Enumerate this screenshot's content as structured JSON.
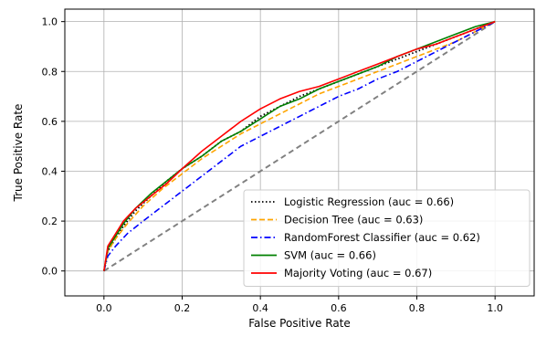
{
  "chart_data": {
    "type": "line",
    "title": "",
    "xlabel": "False Positive Rate",
    "ylabel": "True Positive Rate",
    "xlim": [
      -0.1,
      1.1
    ],
    "ylim": [
      -0.1,
      1.05
    ],
    "xticks": [
      "0.0",
      "0.2",
      "0.4",
      "0.6",
      "0.8",
      "1.0"
    ],
    "yticks": [
      "0.0",
      "0.2",
      "0.4",
      "0.6",
      "0.8",
      "1.0"
    ],
    "xtick_values": [
      0.0,
      0.2,
      0.4,
      0.6,
      0.8,
      1.0
    ],
    "ytick_values": [
      0.0,
      0.2,
      0.4,
      0.6,
      0.8,
      1.0
    ],
    "grid": true,
    "legend_position": "bottom-right",
    "reference_line": {
      "x": [
        0,
        1
      ],
      "y": [
        0,
        1
      ],
      "color": "#808080",
      "style": "dashed"
    },
    "series": [
      {
        "name": "Logistic Regression (auc = 0.66)",
        "color": "#000000",
        "style": "dotted",
        "x": [
          0,
          0.01,
          0.03,
          0.05,
          0.08,
          0.12,
          0.16,
          0.2,
          0.25,
          0.3,
          0.35,
          0.4,
          0.45,
          0.5,
          0.55,
          0.6,
          0.65,
          0.7,
          0.75,
          0.8,
          0.85,
          0.9,
          0.95,
          1.0
        ],
        "y": [
          0,
          0.08,
          0.13,
          0.18,
          0.24,
          0.3,
          0.36,
          0.41,
          0.46,
          0.52,
          0.56,
          0.62,
          0.66,
          0.7,
          0.73,
          0.76,
          0.79,
          0.82,
          0.85,
          0.88,
          0.91,
          0.94,
          0.97,
          1.0
        ]
      },
      {
        "name": "Decision Tree (auc = 0.63)",
        "color": "#ffa500",
        "style": "dashed",
        "x": [
          0,
          0.01,
          0.03,
          0.06,
          0.1,
          0.15,
          0.2,
          0.25,
          0.3,
          0.35,
          0.4,
          0.45,
          0.5,
          0.55,
          0.6,
          0.65,
          0.7,
          0.75,
          0.8,
          0.85,
          0.9,
          0.95,
          1.0
        ],
        "y": [
          0,
          0.08,
          0.13,
          0.19,
          0.26,
          0.33,
          0.39,
          0.45,
          0.5,
          0.55,
          0.59,
          0.63,
          0.67,
          0.71,
          0.74,
          0.77,
          0.8,
          0.83,
          0.86,
          0.89,
          0.92,
          0.96,
          1.0
        ]
      },
      {
        "name": "RandomForest Classifier (auc = 0.62)",
        "color": "#0000ff",
        "style": "dashdot",
        "x": [
          0,
          0.01,
          0.03,
          0.06,
          0.1,
          0.15,
          0.2,
          0.25,
          0.3,
          0.35,
          0.4,
          0.45,
          0.5,
          0.55,
          0.6,
          0.65,
          0.7,
          0.75,
          0.8,
          0.85,
          0.9,
          0.95,
          1.0
        ],
        "y": [
          0,
          0.06,
          0.1,
          0.15,
          0.2,
          0.26,
          0.32,
          0.38,
          0.44,
          0.5,
          0.54,
          0.58,
          0.62,
          0.66,
          0.7,
          0.73,
          0.77,
          0.8,
          0.84,
          0.88,
          0.92,
          0.96,
          1.0
        ]
      },
      {
        "name": "SVM (auc = 0.66)",
        "color": "#008000",
        "style": "solid",
        "x": [
          0,
          0.01,
          0.03,
          0.05,
          0.08,
          0.12,
          0.16,
          0.2,
          0.25,
          0.3,
          0.35,
          0.4,
          0.45,
          0.5,
          0.55,
          0.6,
          0.65,
          0.7,
          0.75,
          0.8,
          0.85,
          0.9,
          0.95,
          1.0
        ],
        "y": [
          0,
          0.09,
          0.14,
          0.19,
          0.25,
          0.31,
          0.36,
          0.41,
          0.46,
          0.52,
          0.56,
          0.61,
          0.66,
          0.69,
          0.73,
          0.76,
          0.79,
          0.82,
          0.86,
          0.89,
          0.92,
          0.95,
          0.98,
          1.0
        ]
      },
      {
        "name": "Majority Voting (auc = 0.67)",
        "color": "#ff0000",
        "style": "solid",
        "x": [
          0,
          0.01,
          0.03,
          0.05,
          0.08,
          0.12,
          0.16,
          0.2,
          0.25,
          0.3,
          0.35,
          0.4,
          0.45,
          0.5,
          0.55,
          0.6,
          0.65,
          0.7,
          0.75,
          0.8,
          0.85,
          0.9,
          0.95,
          1.0
        ],
        "y": [
          0,
          0.1,
          0.15,
          0.2,
          0.25,
          0.3,
          0.35,
          0.41,
          0.48,
          0.54,
          0.6,
          0.65,
          0.69,
          0.72,
          0.74,
          0.77,
          0.8,
          0.83,
          0.86,
          0.89,
          0.91,
          0.94,
          0.97,
          1.0
        ]
      }
    ]
  }
}
